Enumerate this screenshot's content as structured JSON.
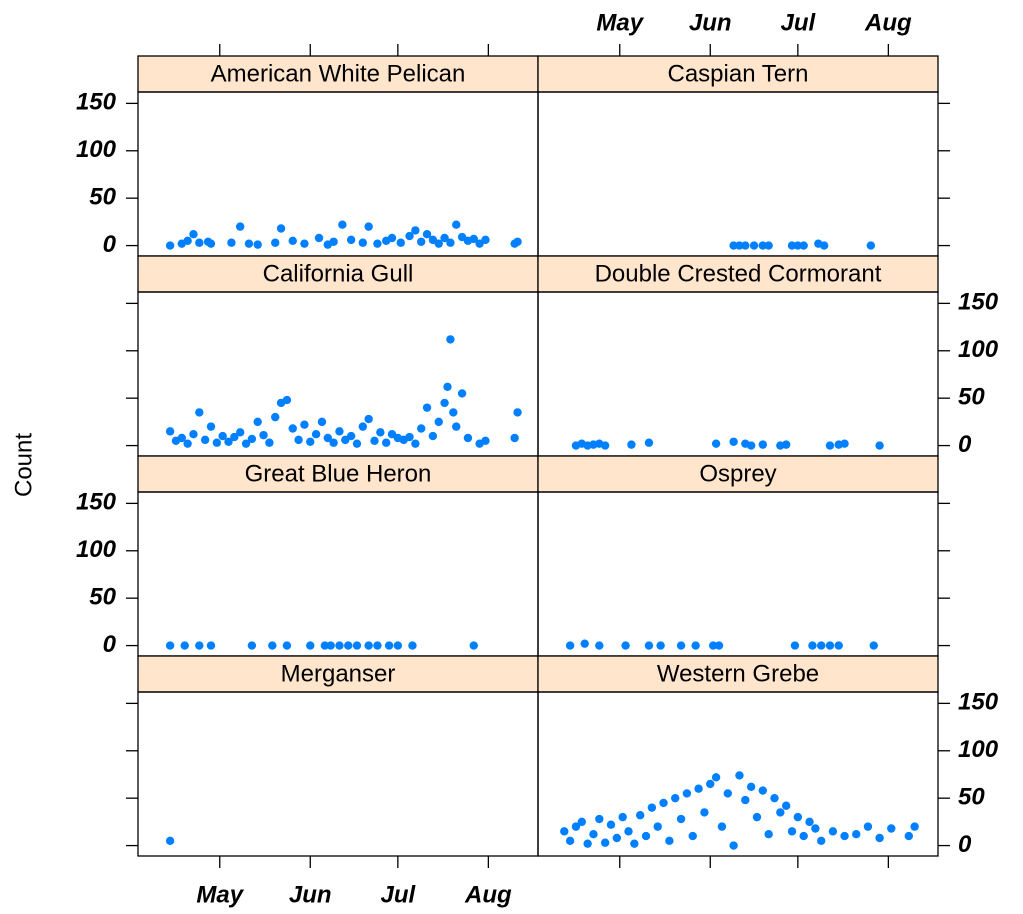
{
  "chart_data": {
    "type": "scatter",
    "ylabel": "Count",
    "xlim": [
      93,
      230
    ],
    "xticks": [
      {
        "value": 121,
        "label": "May"
      },
      {
        "value": 152,
        "label": "Jun"
      },
      {
        "value": 182,
        "label": "Jul"
      },
      {
        "value": 213,
        "label": "Aug"
      }
    ],
    "ylim": [
      -11,
      162
    ],
    "yticks": [
      0,
      50,
      100,
      150
    ],
    "color": "#0080ff",
    "strip_color": "#ffe5cc",
    "series": [
      {
        "name": "American White Pelican",
        "x": [
          104,
          108,
          110,
          112,
          114,
          117,
          118,
          125,
          128,
          131,
          134,
          140,
          142,
          146,
          150,
          155,
          158,
          160,
          163,
          166,
          170,
          172,
          175,
          178,
          180,
          183,
          186,
          188,
          190,
          192,
          194,
          196,
          198,
          200,
          202,
          204,
          206,
          208,
          210,
          212,
          222,
          223
        ],
        "values": [
          0,
          2,
          5,
          12,
          3,
          4,
          2,
          3,
          20,
          2,
          1,
          3,
          18,
          5,
          2,
          8,
          1,
          4,
          22,
          6,
          3,
          20,
          2,
          5,
          8,
          3,
          10,
          16,
          4,
          12,
          6,
          2,
          8,
          3,
          22,
          9,
          5,
          7,
          2,
          6,
          2,
          4
        ]
      },
      {
        "name": "Caspian Tern",
        "x": [
          160,
          162,
          164,
          167,
          170,
          172,
          180,
          182,
          184,
          189,
          191,
          207
        ],
        "values": [
          0,
          0,
          0,
          0,
          0,
          0,
          0,
          0,
          0,
          2,
          0,
          0
        ]
      },
      {
        "name": "California Gull",
        "x": [
          104,
          106,
          108,
          110,
          112,
          114,
          116,
          118,
          120,
          122,
          124,
          126,
          128,
          130,
          132,
          134,
          136,
          138,
          140,
          142,
          144,
          146,
          148,
          150,
          152,
          154,
          156,
          158,
          160,
          162,
          164,
          166,
          168,
          170,
          172,
          174,
          176,
          178,
          180,
          182,
          184,
          186,
          188,
          190,
          192,
          194,
          196,
          198,
          199,
          200,
          201,
          202,
          204,
          206,
          210,
          212,
          222,
          223
        ],
        "values": [
          15,
          5,
          8,
          2,
          12,
          35,
          6,
          20,
          3,
          10,
          4,
          9,
          14,
          2,
          7,
          25,
          11,
          3,
          30,
          45,
          48,
          18,
          6,
          22,
          4,
          12,
          25,
          8,
          3,
          15,
          6,
          10,
          2,
          20,
          28,
          5,
          14,
          3,
          12,
          8,
          6,
          9,
          2,
          18,
          40,
          10,
          25,
          45,
          62,
          112,
          35,
          20,
          55,
          8,
          2,
          5,
          8,
          35
        ]
      },
      {
        "name": "Double Crested Cormorant",
        "x": [
          106,
          108,
          110,
          112,
          114,
          116,
          125,
          131,
          154,
          160,
          164,
          166,
          170,
          176,
          178,
          193,
          196,
          198,
          210
        ],
        "values": [
          0,
          2,
          0,
          1,
          2,
          0,
          1,
          3,
          2,
          4,
          2,
          0,
          1,
          0,
          1,
          0,
          1,
          2,
          0
        ]
      },
      {
        "name": "Great Blue Heron",
        "x": [
          104,
          109,
          114,
          118,
          132,
          139,
          144,
          152,
          157,
          159,
          162,
          165,
          168,
          172,
          175,
          179,
          182,
          187,
          208
        ],
        "values": [
          0,
          0,
          0,
          0,
          0,
          0,
          0,
          0,
          0,
          0,
          0,
          0,
          0,
          0,
          0,
          0,
          0,
          0,
          0
        ]
      },
      {
        "name": "Osprey",
        "x": [
          104,
          109,
          114,
          123,
          131,
          135,
          142,
          147,
          153,
          155,
          181,
          187,
          190,
          193,
          196,
          208
        ],
        "values": [
          0,
          2,
          0,
          0,
          0,
          0,
          0,
          0,
          0,
          0,
          0,
          0,
          0,
          0,
          0,
          0
        ]
      },
      {
        "name": "Merganser",
        "x": [
          104
        ],
        "values": [
          5
        ]
      },
      {
        "name": "Western Grebe",
        "x": [
          102,
          104,
          106,
          108,
          110,
          112,
          114,
          116,
          118,
          120,
          122,
          124,
          126,
          128,
          130,
          132,
          134,
          136,
          138,
          140,
          142,
          144,
          146,
          148,
          150,
          152,
          154,
          156,
          158,
          160,
          162,
          164,
          166,
          168,
          170,
          172,
          174,
          176,
          178,
          180,
          182,
          184,
          186,
          188,
          190,
          194,
          198,
          202,
          206,
          210,
          214,
          220,
          222
        ],
        "values": [
          15,
          5,
          20,
          25,
          2,
          12,
          28,
          3,
          22,
          8,
          30,
          15,
          2,
          32,
          10,
          40,
          20,
          45,
          5,
          50,
          28,
          55,
          10,
          60,
          35,
          65,
          72,
          20,
          55,
          0,
          74,
          48,
          62,
          30,
          58,
          12,
          50,
          35,
          42,
          15,
          30,
          10,
          25,
          18,
          5,
          15,
          10,
          12,
          20,
          8,
          18,
          10,
          20
        ]
      }
    ]
  }
}
